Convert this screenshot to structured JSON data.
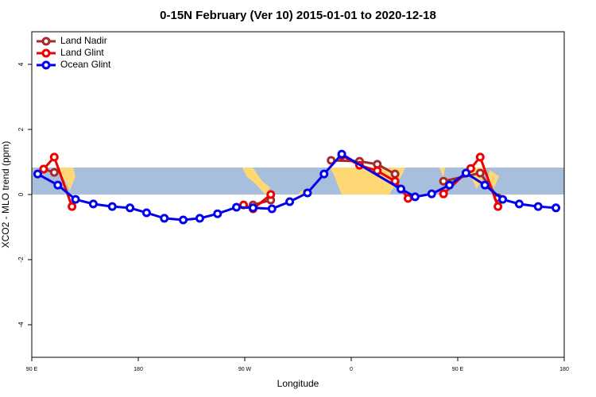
{
  "chart_data": {
    "type": "line",
    "title": "0-15N February (Ver 10)   2015-01-01 to 2020-12-18",
    "xlabel": "Longitude",
    "ylabel": "XCO2 - MLO trend (ppm)",
    "xlim": [
      90,
      540
    ],
    "ylim": [
      -5,
      5
    ],
    "xticks": [
      {
        "value": 90,
        "label": "90 E"
      },
      180,
      {
        "value": 270,
        "label": "90 W"
      },
      {
        "value": 360,
        "label": "0"
      },
      {
        "value": 450,
        "label": "90 E"
      },
      {
        "value": 540,
        "label": "180"
      }
    ],
    "yticks": [
      -4,
      -2,
      0,
      2,
      4
    ],
    "legend": "top-left",
    "series": [
      {
        "name": "Land Nadir",
        "color": "#a52a2a",
        "x": [
          100,
          109,
          200,
          277,
          292,
          320,
          343,
          367,
          382,
          397,
          420,
          438,
          469,
          484
        ],
        "values": [
          0.78,
          0.68,
          null,
          -0.32,
          -0.17,
          null,
          1.05,
          1.02,
          0.93,
          0.63,
          null,
          0.41,
          0.66,
          -0.1
        ]
      },
      {
        "name": "Land Glint",
        "color": "#ee0000",
        "x": [
          100,
          109,
          124,
          200,
          269,
          277,
          292,
          320,
          352,
          367,
          382,
          397,
          408,
          420,
          438,
          461,
          469,
          484
        ],
        "values": [
          0.78,
          1.15,
          -0.37,
          null,
          -0.32,
          -0.44,
          0.0,
          null,
          1.2,
          0.9,
          0.73,
          0.41,
          -0.12,
          null,
          0.02,
          0.8,
          1.15,
          -0.37
        ]
      },
      {
        "name": "Ocean Glint",
        "color": "#0000ee",
        "x": [
          95,
          112,
          127,
          142,
          158,
          173,
          187,
          202,
          218,
          232,
          247,
          263,
          277,
          293,
          308,
          323,
          337,
          352,
          402,
          414,
          428,
          443,
          457,
          473,
          488,
          502,
          518,
          533
        ],
        "values": [
          0.63,
          0.29,
          -0.15,
          -0.29,
          -0.37,
          -0.41,
          -0.56,
          -0.73,
          -0.78,
          -0.73,
          -0.59,
          -0.39,
          -0.41,
          -0.44,
          -0.22,
          0.05,
          0.63,
          1.24,
          0.17,
          -0.07,
          0.02,
          0.29,
          0.66,
          0.29,
          -0.15,
          -0.29,
          -0.37,
          -0.41
        ]
      }
    ]
  }
}
